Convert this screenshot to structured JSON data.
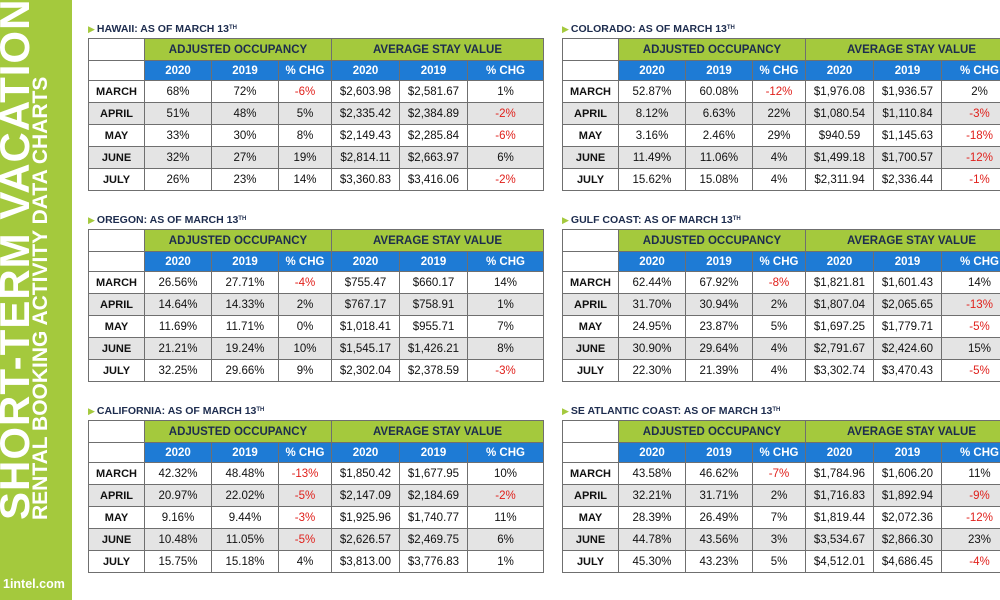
{
  "sidebar": {
    "title": "SHORT-TERM VACATION",
    "subtitle": "RENTAL BOOKING ACTIVITY DATA CHARTS",
    "site": "1intel.com"
  },
  "colors": {
    "accent_green": "#a4c93d",
    "header_blue": "#1e7bd5",
    "negative_red": "#e0201b"
  },
  "labels": {
    "adjusted_occupancy": "ADJUSTED OCCUPANCY",
    "average_stay_value": "AVERAGE STAY VALUE",
    "years": [
      "2020",
      "2019",
      "% CHG",
      "2020",
      "2019",
      "% CHG"
    ]
  },
  "panels": [
    {
      "region": "HAWAII",
      "as_of": ": AS OF MARCH 13",
      "sup": "TH",
      "rows": [
        {
          "month": "MARCH",
          "occ2020": "68%",
          "occ2019": "72%",
          "occchg": "-6%",
          "asv2020": "$2,603.98",
          "asv2019": "$2,581.67",
          "asvchg": "1%"
        },
        {
          "month": "APRIL",
          "occ2020": "51%",
          "occ2019": "48%",
          "occchg": "5%",
          "asv2020": "$2,335.42",
          "asv2019": "$2,384.89",
          "asvchg": "-2%"
        },
        {
          "month": "MAY",
          "occ2020": "33%",
          "occ2019": "30%",
          "occchg": "8%",
          "asv2020": "$2,149.43",
          "asv2019": "$2,285.84",
          "asvchg": "-6%"
        },
        {
          "month": "JUNE",
          "occ2020": "32%",
          "occ2019": "27%",
          "occchg": "19%",
          "asv2020": "$2,814.11",
          "asv2019": "$2,663.97",
          "asvchg": "6%"
        },
        {
          "month": "JULY",
          "occ2020": "26%",
          "occ2019": "23%",
          "occchg": "14%",
          "asv2020": "$3,360.83",
          "asv2019": "$3,416.06",
          "asvchg": "-2%"
        }
      ]
    },
    {
      "region": "COLORADO",
      "as_of": ": AS OF MARCH 13",
      "sup": "TH",
      "rows": [
        {
          "month": "MARCH",
          "occ2020": "52.87%",
          "occ2019": "60.08%",
          "occchg": "-12%",
          "asv2020": "$1,976.08",
          "asv2019": "$1,936.57",
          "asvchg": "2%"
        },
        {
          "month": "APRIL",
          "occ2020": "8.12%",
          "occ2019": "6.63%",
          "occchg": "22%",
          "asv2020": "$1,080.54",
          "asv2019": "$1,110.84",
          "asvchg": "-3%"
        },
        {
          "month": "MAY",
          "occ2020": "3.16%",
          "occ2019": "2.46%",
          "occchg": "29%",
          "asv2020": "$940.59",
          "asv2019": "$1,145.63",
          "asvchg": "-18%"
        },
        {
          "month": "JUNE",
          "occ2020": "11.49%",
          "occ2019": "11.06%",
          "occchg": "4%",
          "asv2020": "$1,499.18",
          "asv2019": "$1,700.57",
          "asvchg": "-12%"
        },
        {
          "month": "JULY",
          "occ2020": "15.62%",
          "occ2019": "15.08%",
          "occchg": "4%",
          "asv2020": "$2,311.94",
          "asv2019": "$2,336.44",
          "asvchg": "-1%"
        }
      ]
    },
    {
      "region": "OREGON",
      "as_of": ": AS OF MARCH 13",
      "sup": "TH",
      "rows": [
        {
          "month": "MARCH",
          "occ2020": "26.56%",
          "occ2019": "27.71%",
          "occchg": "-4%",
          "asv2020": "$755.47",
          "asv2019": "$660.17",
          "asvchg": "14%"
        },
        {
          "month": "APRIL",
          "occ2020": "14.64%",
          "occ2019": "14.33%",
          "occchg": "2%",
          "asv2020": "$767.17",
          "asv2019": "$758.91",
          "asvchg": "1%"
        },
        {
          "month": "MAY",
          "occ2020": "11.69%",
          "occ2019": "11.71%",
          "occchg": "0%",
          "asv2020": "$1,018.41",
          "asv2019": "$955.71",
          "asvchg": "7%"
        },
        {
          "month": "JUNE",
          "occ2020": "21.21%",
          "occ2019": "19.24%",
          "occchg": "10%",
          "asv2020": "$1,545.17",
          "asv2019": "$1,426.21",
          "asvchg": "8%"
        },
        {
          "month": "JULY",
          "occ2020": "32.25%",
          "occ2019": "29.66%",
          "occchg": "9%",
          "asv2020": "$2,302.04",
          "asv2019": "$2,378.59",
          "asvchg": "-3%"
        }
      ]
    },
    {
      "region": "GULF COAST",
      "as_of": ": AS OF MARCH 13",
      "sup": "TH",
      "rows": [
        {
          "month": "MARCH",
          "occ2020": "62.44%",
          "occ2019": "67.92%",
          "occchg": "-8%",
          "asv2020": "$1,821.81",
          "asv2019": "$1,601.43",
          "asvchg": "14%"
        },
        {
          "month": "APRIL",
          "occ2020": "31.70%",
          "occ2019": "30.94%",
          "occchg": "2%",
          "asv2020": "$1,807.04",
          "asv2019": "$2,065.65",
          "asvchg": "-13%"
        },
        {
          "month": "MAY",
          "occ2020": "24.95%",
          "occ2019": "23.87%",
          "occchg": "5%",
          "asv2020": "$1,697.25",
          "asv2019": "$1,779.71",
          "asvchg": "-5%"
        },
        {
          "month": "JUNE",
          "occ2020": "30.90%",
          "occ2019": "29.64%",
          "occchg": "4%",
          "asv2020": "$2,791.67",
          "asv2019": "$2,424.60",
          "asvchg": "15%"
        },
        {
          "month": "JULY",
          "occ2020": "22.30%",
          "occ2019": "21.39%",
          "occchg": "4%",
          "asv2020": "$3,302.74",
          "asv2019": "$3,470.43",
          "asvchg": "-5%"
        }
      ]
    },
    {
      "region": "CALIFORNIA",
      "as_of": ": AS OF MARCH 13",
      "sup": "TH",
      "rows": [
        {
          "month": "MARCH",
          "occ2020": "42.32%",
          "occ2019": "48.48%",
          "occchg": "-13%",
          "asv2020": "$1,850.42",
          "asv2019": "$1,677.95",
          "asvchg": "10%"
        },
        {
          "month": "APRIL",
          "occ2020": "20.97%",
          "occ2019": "22.02%",
          "occchg": "-5%",
          "asv2020": "$2,147.09",
          "asv2019": "$2,184.69",
          "asvchg": "-2%"
        },
        {
          "month": "MAY",
          "occ2020": "9.16%",
          "occ2019": "9.44%",
          "occchg": "-3%",
          "asv2020": "$1,925.96",
          "asv2019": "$1,740.77",
          "asvchg": "11%"
        },
        {
          "month": "JUNE",
          "occ2020": "10.48%",
          "occ2019": "11.05%",
          "occchg": "-5%",
          "asv2020": "$2,626.57",
          "asv2019": "$2,469.75",
          "asvchg": "6%"
        },
        {
          "month": "JULY",
          "occ2020": "15.75%",
          "occ2019": "15.18%",
          "occchg": "4%",
          "asv2020": "$3,813.00",
          "asv2019": "$3,776.83",
          "asvchg": "1%"
        }
      ]
    },
    {
      "region": "SE ATLANTIC COAST",
      "as_of": ": AS OF MARCH 13",
      "sup": "TH",
      "rows": [
        {
          "month": "MARCH",
          "occ2020": "43.58%",
          "occ2019": "46.62%",
          "occchg": "-7%",
          "asv2020": "$1,784.96",
          "asv2019": "$1,606.20",
          "asvchg": "11%"
        },
        {
          "month": "APRIL",
          "occ2020": "32.21%",
          "occ2019": "31.71%",
          "occchg": "2%",
          "asv2020": "$1,716.83",
          "asv2019": "$1,892.94",
          "asvchg": "-9%"
        },
        {
          "month": "MAY",
          "occ2020": "28.39%",
          "occ2019": "26.49%",
          "occchg": "7%",
          "asv2020": "$1,819.44",
          "asv2019": "$2,072.36",
          "asvchg": "-12%"
        },
        {
          "month": "JUNE",
          "occ2020": "44.78%",
          "occ2019": "43.56%",
          "occchg": "3%",
          "asv2020": "$3,534.67",
          "asv2019": "$2,866.30",
          "asvchg": "23%"
        },
        {
          "month": "JULY",
          "occ2020": "45.30%",
          "occ2019": "43.23%",
          "occchg": "5%",
          "asv2020": "$4,512.01",
          "asv2019": "$4,686.45",
          "asvchg": "-4%"
        }
      ]
    }
  ]
}
